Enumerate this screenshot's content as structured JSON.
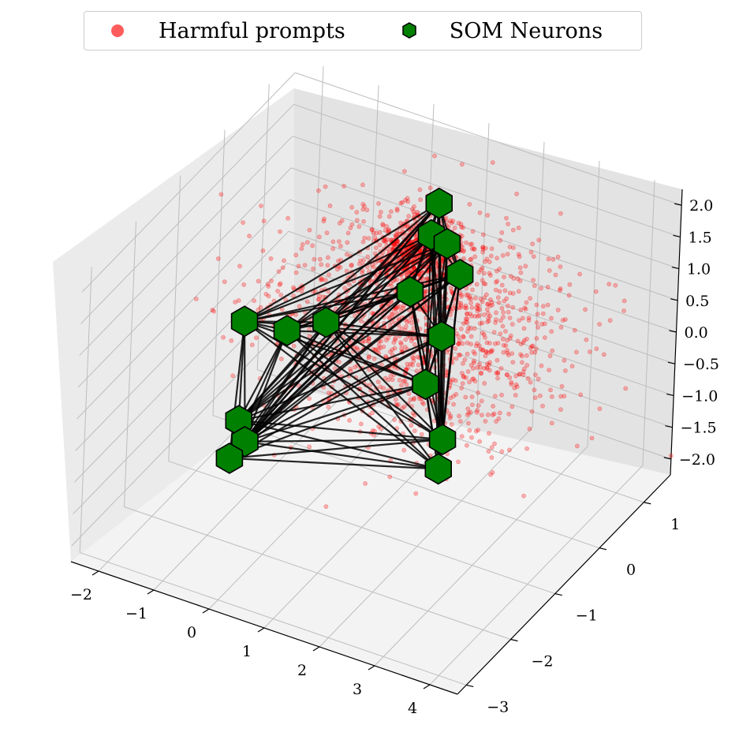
{
  "legend": {
    "items": [
      {
        "label": "Harmful prompts",
        "marker": "circle",
        "color": "#ff0000"
      },
      {
        "label": "SOM Neurons",
        "marker": "hexagon",
        "color": "#008000"
      }
    ]
  },
  "chart_data": {
    "type": "scatter",
    "projection": "3d",
    "title": "",
    "xlabel": "",
    "ylabel": "",
    "zlabel": "",
    "grid": true,
    "legend_position": "top-center",
    "x_ticks": [
      "−2",
      "−1",
      "0",
      "1",
      "2",
      "3",
      "4"
    ],
    "y_ticks": [
      "−3",
      "−2",
      "−1",
      "0",
      "1"
    ],
    "z_ticks": [
      "−2.0",
      "−1.5",
      "−1.0",
      "−0.5",
      "0.0",
      "0.5",
      "1.0",
      "1.5",
      "2.0"
    ],
    "xlim": [
      -2.5,
      4.5
    ],
    "ylim": [
      -3.2,
      1.6
    ],
    "zlim": [
      -2.25,
      2.25
    ],
    "series": [
      {
        "name": "Harmful prompts",
        "kind": "points",
        "color": "#ff0000",
        "cluster_center": [
          0.9,
          0.2,
          0.9
        ],
        "cluster_spread": [
          1.2,
          0.7,
          0.6
        ],
        "approx_count": 2000
      },
      {
        "name": "SOM Neurons",
        "kind": "grid",
        "color": "#008000",
        "neurons": [
          {
            "x": -1.55,
            "y": -0.6,
            "z": -0.05
          },
          {
            "x": -1.05,
            "y": -0.25,
            "z": -0.3
          },
          {
            "x": -0.55,
            "y": 0.0,
            "z": -0.2
          },
          {
            "x": 0.55,
            "y": 0.5,
            "z": 0.25
          },
          {
            "x": 1.2,
            "y": 0.8,
            "z": 0.5
          },
          {
            "x": 0.7,
            "y": 0.9,
            "z": 1.4
          },
          {
            "x": 0.85,
            "y": 0.55,
            "z": 1.2
          },
          {
            "x": 1.1,
            "y": 0.6,
            "z": 1.1
          },
          {
            "x": 1.45,
            "y": 0.1,
            "z": 0.1
          },
          {
            "x": 1.5,
            "y": -0.3,
            "z": -0.35
          },
          {
            "x": 2.3,
            "y": -0.9,
            "z": -0.55
          },
          {
            "x": 2.55,
            "y": -1.3,
            "z": -0.65
          },
          {
            "x": -1.2,
            "y": -1.1,
            "z": -1.15
          },
          {
            "x": -1.0,
            "y": -1.2,
            "z": -1.35
          },
          {
            "x": -1.15,
            "y": -1.35,
            "z": -1.55
          }
        ]
      }
    ]
  }
}
